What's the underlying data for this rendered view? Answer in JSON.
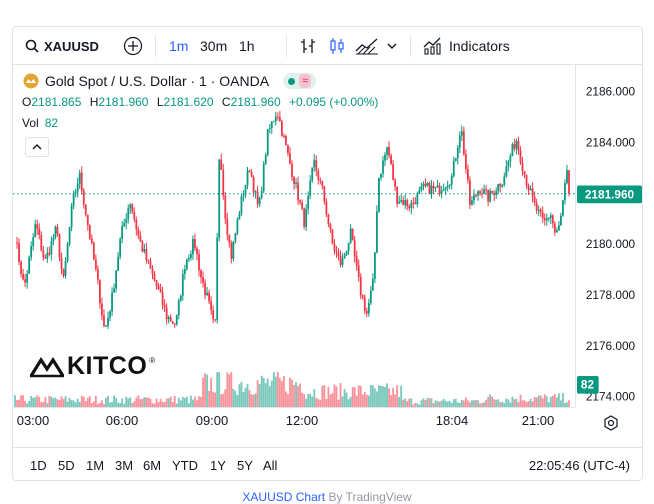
{
  "toolbar": {
    "symbol": "XAUUSD",
    "intervals": [
      "1m",
      "30m",
      "1h"
    ],
    "active_interval": "1m",
    "indicators_label": "Indicators"
  },
  "legend": {
    "title": "Gold Spot / U.S. Dollar · 1 · OANDA",
    "open_label": "O",
    "open": "2181.865",
    "high_label": "H",
    "high": "2181.960",
    "low_label": "L",
    "low": "2181.620",
    "close_label": "C",
    "close": "2181.960",
    "change": "+0.095 (+0.00%)",
    "vol_label": "Vol",
    "vol_value": "82",
    "wave_glyph": "≈"
  },
  "logo": {
    "text": "KITCO",
    "mark": "®"
  },
  "price_scale": {
    "labels": [
      "2186.000",
      "2184.000",
      "2182.000",
      "2180.000",
      "2178.000",
      "2176.000",
      "2174.000"
    ],
    "current_price": "2181.960",
    "current_volume": "82"
  },
  "time_axis": {
    "labels": [
      "03:00",
      "06:00",
      "09:00",
      "12:00",
      "18:04",
      "21:00"
    ]
  },
  "ranges": [
    "1D",
    "5D",
    "1M",
    "3M",
    "6M",
    "YTD",
    "1Y",
    "5Y",
    "All"
  ],
  "clock": "22:05:46 (UTC-4)",
  "caption": {
    "link": "XAUUSD Chart",
    "by": "By TradingView"
  },
  "colors": {
    "up": "#089981",
    "down": "#f23645",
    "accent": "#2962ff",
    "grid": "#e0e3eb"
  },
  "chart_data": {
    "type": "candlestick",
    "title": "Gold Spot / U.S. Dollar · 1 · OANDA",
    "ylim": [
      2174.0,
      2186.8
    ],
    "y_ticks": [
      2174,
      2176,
      2178,
      2180,
      2182,
      2184,
      2186
    ],
    "x_ticks": [
      "03:00",
      "06:00",
      "09:00",
      "12:00",
      "18:04",
      "21:00"
    ],
    "price_path": [
      [
        "02:00",
        2180.3
      ],
      [
        "02:20",
        2178.3
      ],
      [
        "02:45",
        2180.8
      ],
      [
        "03:05",
        2179.3
      ],
      [
        "03:30",
        2180.6
      ],
      [
        "03:45",
        2178.5
      ],
      [
        "04:05",
        2181.6
      ],
      [
        "04:20",
        2182.7
      ],
      [
        "04:40",
        2180.6
      ],
      [
        "05:00",
        2178.5
      ],
      [
        "05:15",
        2176.6
      ],
      [
        "05:30",
        2177.8
      ],
      [
        "05:50",
        2180.3
      ],
      [
        "06:10",
        2181.7
      ],
      [
        "06:30",
        2180.2
      ],
      [
        "06:50",
        2179.2
      ],
      [
        "07:10",
        2178.3
      ],
      [
        "07:30",
        2177.2
      ],
      [
        "07:50",
        2176.9
      ],
      [
        "08:10",
        2179.3
      ],
      [
        "08:30",
        2180.1
      ],
      [
        "08:45",
        2178.7
      ],
      [
        "09:00",
        2177.8
      ],
      [
        "09:15",
        2176.6
      ],
      [
        "09:25",
        2184.0
      ],
      [
        "09:35",
        2181.5
      ],
      [
        "09:50",
        2179.5
      ],
      [
        "10:10",
        2181.5
      ],
      [
        "10:30",
        2183.0
      ],
      [
        "10:50",
        2181.3
      ],
      [
        "11:10",
        2184.3
      ],
      [
        "11:30",
        2185.2
      ],
      [
        "11:50",
        2183.7
      ],
      [
        "12:10",
        2182.3
      ],
      [
        "12:30",
        2180.8
      ],
      [
        "12:50",
        2183.2
      ],
      [
        "13:10",
        2182.0
      ],
      [
        "13:30",
        2180.0
      ],
      [
        "13:50",
        2179.2
      ],
      [
        "14:10",
        2180.4
      ],
      [
        "14:30",
        2178.3
      ],
      [
        "14:45",
        2177.3
      ],
      [
        "15:00",
        2178.6
      ],
      [
        "15:10",
        2182.5
      ],
      [
        "15:30",
        2183.8
      ],
      [
        "15:50",
        2181.8
      ],
      [
        "16:20",
        2181.5
      ],
      [
        "16:50",
        2182.2
      ],
      [
        "17:20",
        2182.1
      ],
      [
        "17:50",
        2182.6
      ],
      [
        "18:10",
        2184.6
      ],
      [
        "18:30",
        2181.5
      ],
      [
        "18:50",
        2182.2
      ],
      [
        "19:10",
        2181.8
      ],
      [
        "19:40",
        2182.5
      ],
      [
        "20:10",
        2184.1
      ],
      [
        "20:30",
        2182.6
      ],
      [
        "20:50",
        2181.5
      ],
      [
        "21:10",
        2180.8
      ],
      [
        "21:25",
        2181.2
      ],
      [
        "21:35",
        2180.4
      ],
      [
        "21:45",
        2180.7
      ],
      [
        "22:00",
        2182.8
      ],
      [
        "22:05",
        2181.96
      ]
    ],
    "last_price": 2181.96,
    "last_volume": 82
  }
}
